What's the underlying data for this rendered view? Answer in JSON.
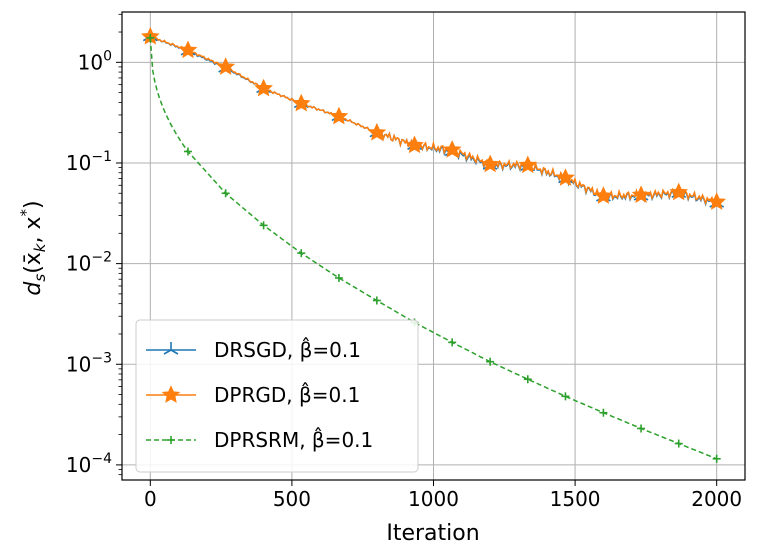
{
  "chart_data": {
    "type": "line",
    "xlabel": "Iteration",
    "ylabel_main": "d",
    "ylabel_sub": "s",
    "ylabel_rest": "(x̄",
    "ylabel_sub2": "k",
    "ylabel_tail": ", x",
    "ylabel_sup": "*",
    "ylabel_close": ")",
    "yscale": "log",
    "xlim": [
      -100,
      2100
    ],
    "ylim_exp": [
      -4.15,
      0.5
    ],
    "grid": true,
    "legend_position": "lower-left",
    "xticks": [
      0,
      500,
      1000,
      1500,
      2000
    ],
    "xtick_labels": [
      "0",
      "500",
      "1000",
      "1500",
      "2000"
    ],
    "yticks_exp": [
      0,
      -1,
      -2,
      -3,
      -4
    ],
    "ytick_mantissa": "10",
    "ytick_exps": [
      "0",
      "−1",
      "−2",
      "−3",
      "−4"
    ],
    "series": [
      {
        "name": "DRSGD, β̂=0.1",
        "legend_label": "DRSGD, β̂=0.1",
        "color": "#1f77b4",
        "marker": "tri",
        "linestyle": "solid",
        "x": [
          0,
          133,
          266,
          400,
          533,
          666,
          800,
          933,
          1066,
          1200,
          1333,
          1466,
          1600,
          1733,
          1866,
          2000
        ],
        "y": [
          1.8,
          1.3,
          0.88,
          0.55,
          0.39,
          0.29,
          0.2,
          0.15,
          0.13,
          0.095,
          0.093,
          0.07,
          0.046,
          0.047,
          0.05,
          0.04
        ]
      },
      {
        "name": "DPRGD, β̂=0.1",
        "legend_label": "DPRGD, β̂=0.1",
        "color": "#ff7f0e",
        "marker": "star",
        "linestyle": "solid",
        "x": [
          0,
          133,
          266,
          400,
          533,
          666,
          800,
          933,
          1066,
          1200,
          1333,
          1466,
          1600,
          1733,
          1866,
          2000
        ],
        "y": [
          1.8,
          1.32,
          0.9,
          0.55,
          0.39,
          0.29,
          0.2,
          0.15,
          0.135,
          0.097,
          0.095,
          0.071,
          0.047,
          0.048,
          0.051,
          0.041
        ]
      },
      {
        "name": "DPRSRM, β̂=0.1",
        "legend_label": "DPRSRM, β̂=0.1",
        "color": "#2ca02c",
        "marker": "plus",
        "linestyle": "dashed",
        "x": [
          0,
          133,
          266,
          400,
          533,
          666,
          800,
          933,
          1066,
          1200,
          1333,
          1466,
          1600,
          1733,
          1866,
          2000
        ],
        "y": [
          1.75,
          0.13,
          0.05,
          0.024,
          0.0127,
          0.0072,
          0.0043,
          0.0026,
          0.00165,
          0.00106,
          0.00071,
          0.00048,
          0.00033,
          0.00023,
          0.000163,
          0.000115
        ]
      }
    ]
  }
}
